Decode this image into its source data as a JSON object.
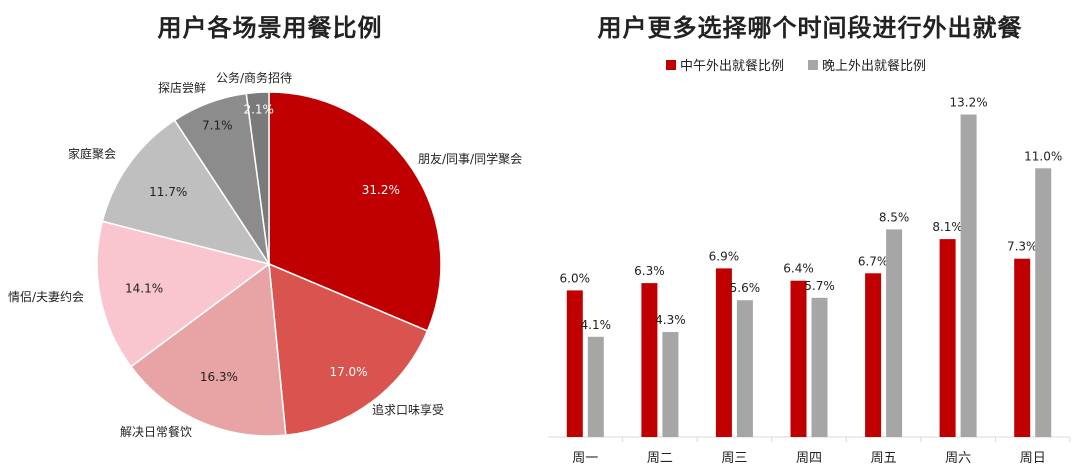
{
  "chart_data": [
    {
      "type": "pie",
      "title": "用户各场景用餐比例",
      "slices": [
        {
          "label": "朋友/同事/同学聚会",
          "value": 31.2,
          "display": "31.2%",
          "color": "#c00000",
          "value_color": "#ffffff"
        },
        {
          "label": "追求口味享受",
          "value": 17.0,
          "display": "17.0%",
          "color": "#d9534f",
          "value_color": "#ffffff"
        },
        {
          "label": "解决日常餐饮",
          "value": 16.3,
          "display": "16.3%",
          "color": "#e8a4a4",
          "value_color": "#222222"
        },
        {
          "label": "情侣/夫妻约会",
          "value": 14.1,
          "display": "14.1%",
          "color": "#f9c6cf",
          "value_color": "#222222"
        },
        {
          "label": "家庭聚会",
          "value": 11.7,
          "display": "11.7%",
          "color": "#bfbfbf",
          "value_color": "#222222"
        },
        {
          "label": "探店尝鲜",
          "value": 7.1,
          "display": "7.1%",
          "color": "#8c8c8c",
          "value_color": "#222222"
        },
        {
          "label": "公务/商务招待",
          "value": 2.1,
          "display": "2.1%",
          "color": "#7a7a7a",
          "value_color": "#ffffff"
        }
      ]
    },
    {
      "type": "bar",
      "title": "用户更多选择哪个时间段进行外出就餐",
      "categories": [
        "周一",
        "周二",
        "周三",
        "周四",
        "周五",
        "周六",
        "周日"
      ],
      "series": [
        {
          "name": "中午外出就餐比例",
          "color": "#c00000",
          "values": [
            6.0,
            6.3,
            6.9,
            6.4,
            6.7,
            8.1,
            7.3
          ],
          "labels": [
            "6.0%",
            "6.3%",
            "6.9%",
            "6.4%",
            "6.7%",
            "8.1%",
            "7.3%"
          ]
        },
        {
          "name": "晚上外出就餐比例",
          "color": "#a6a6a6",
          "values": [
            4.1,
            4.3,
            5.6,
            5.7,
            8.5,
            13.2,
            11.0
          ],
          "labels": [
            "4.1%",
            "4.3%",
            "5.6%",
            "5.7%",
            "8.5%",
            "13.2%",
            "11.0%"
          ]
        }
      ],
      "ylim": [
        0,
        14
      ],
      "legend": "top",
      "grid": false
    }
  ]
}
